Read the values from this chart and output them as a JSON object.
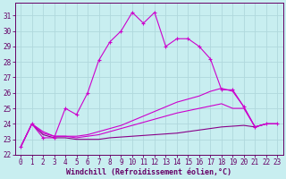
{
  "xlabel": "Windchill (Refroidissement éolien,°C)",
  "xlim": [
    -0.5,
    23.5
  ],
  "ylim": [
    22,
    31.8
  ],
  "yticks": [
    22,
    23,
    24,
    25,
    26,
    27,
    28,
    29,
    30,
    31
  ],
  "xticks": [
    0,
    1,
    2,
    3,
    4,
    5,
    6,
    7,
    8,
    9,
    10,
    11,
    12,
    13,
    14,
    15,
    16,
    17,
    18,
    19,
    20,
    21,
    22,
    23
  ],
  "bg_color": "#c8eef0",
  "grid_color": "#b0d8dc",
  "line_color1": "#cc00cc",
  "line_color2": "#880088",
  "series1": [
    22.5,
    24.0,
    23.1,
    23.1,
    25.0,
    24.6,
    26.0,
    28.1,
    29.3,
    30.0,
    31.2,
    30.5,
    31.2,
    29.0,
    29.5,
    29.5,
    29.0,
    28.2,
    26.2,
    26.2,
    25.1,
    23.8,
    24.0,
    24.0
  ],
  "series2": [
    22.5,
    24.0,
    23.3,
    23.1,
    23.1,
    23.0,
    23.0,
    23.0,
    23.1,
    23.15,
    23.2,
    23.25,
    23.3,
    23.35,
    23.4,
    23.5,
    23.6,
    23.7,
    23.8,
    23.85,
    23.9,
    23.8,
    24.0,
    24.0
  ],
  "series3": [
    22.5,
    24.0,
    23.4,
    23.2,
    23.2,
    23.1,
    23.2,
    23.3,
    23.5,
    23.7,
    23.9,
    24.1,
    24.3,
    24.5,
    24.7,
    24.85,
    25.0,
    25.15,
    25.3,
    25.0,
    25.0,
    23.8,
    24.0,
    24.0
  ],
  "series4": [
    22.5,
    24.0,
    23.5,
    23.2,
    23.2,
    23.2,
    23.3,
    23.5,
    23.7,
    23.9,
    24.2,
    24.5,
    24.8,
    25.1,
    25.4,
    25.6,
    25.8,
    26.1,
    26.3,
    26.1,
    25.1,
    23.8,
    24.0,
    24.0
  ],
  "tick_fontsize": 5.5,
  "xlabel_fontsize": 6.0
}
